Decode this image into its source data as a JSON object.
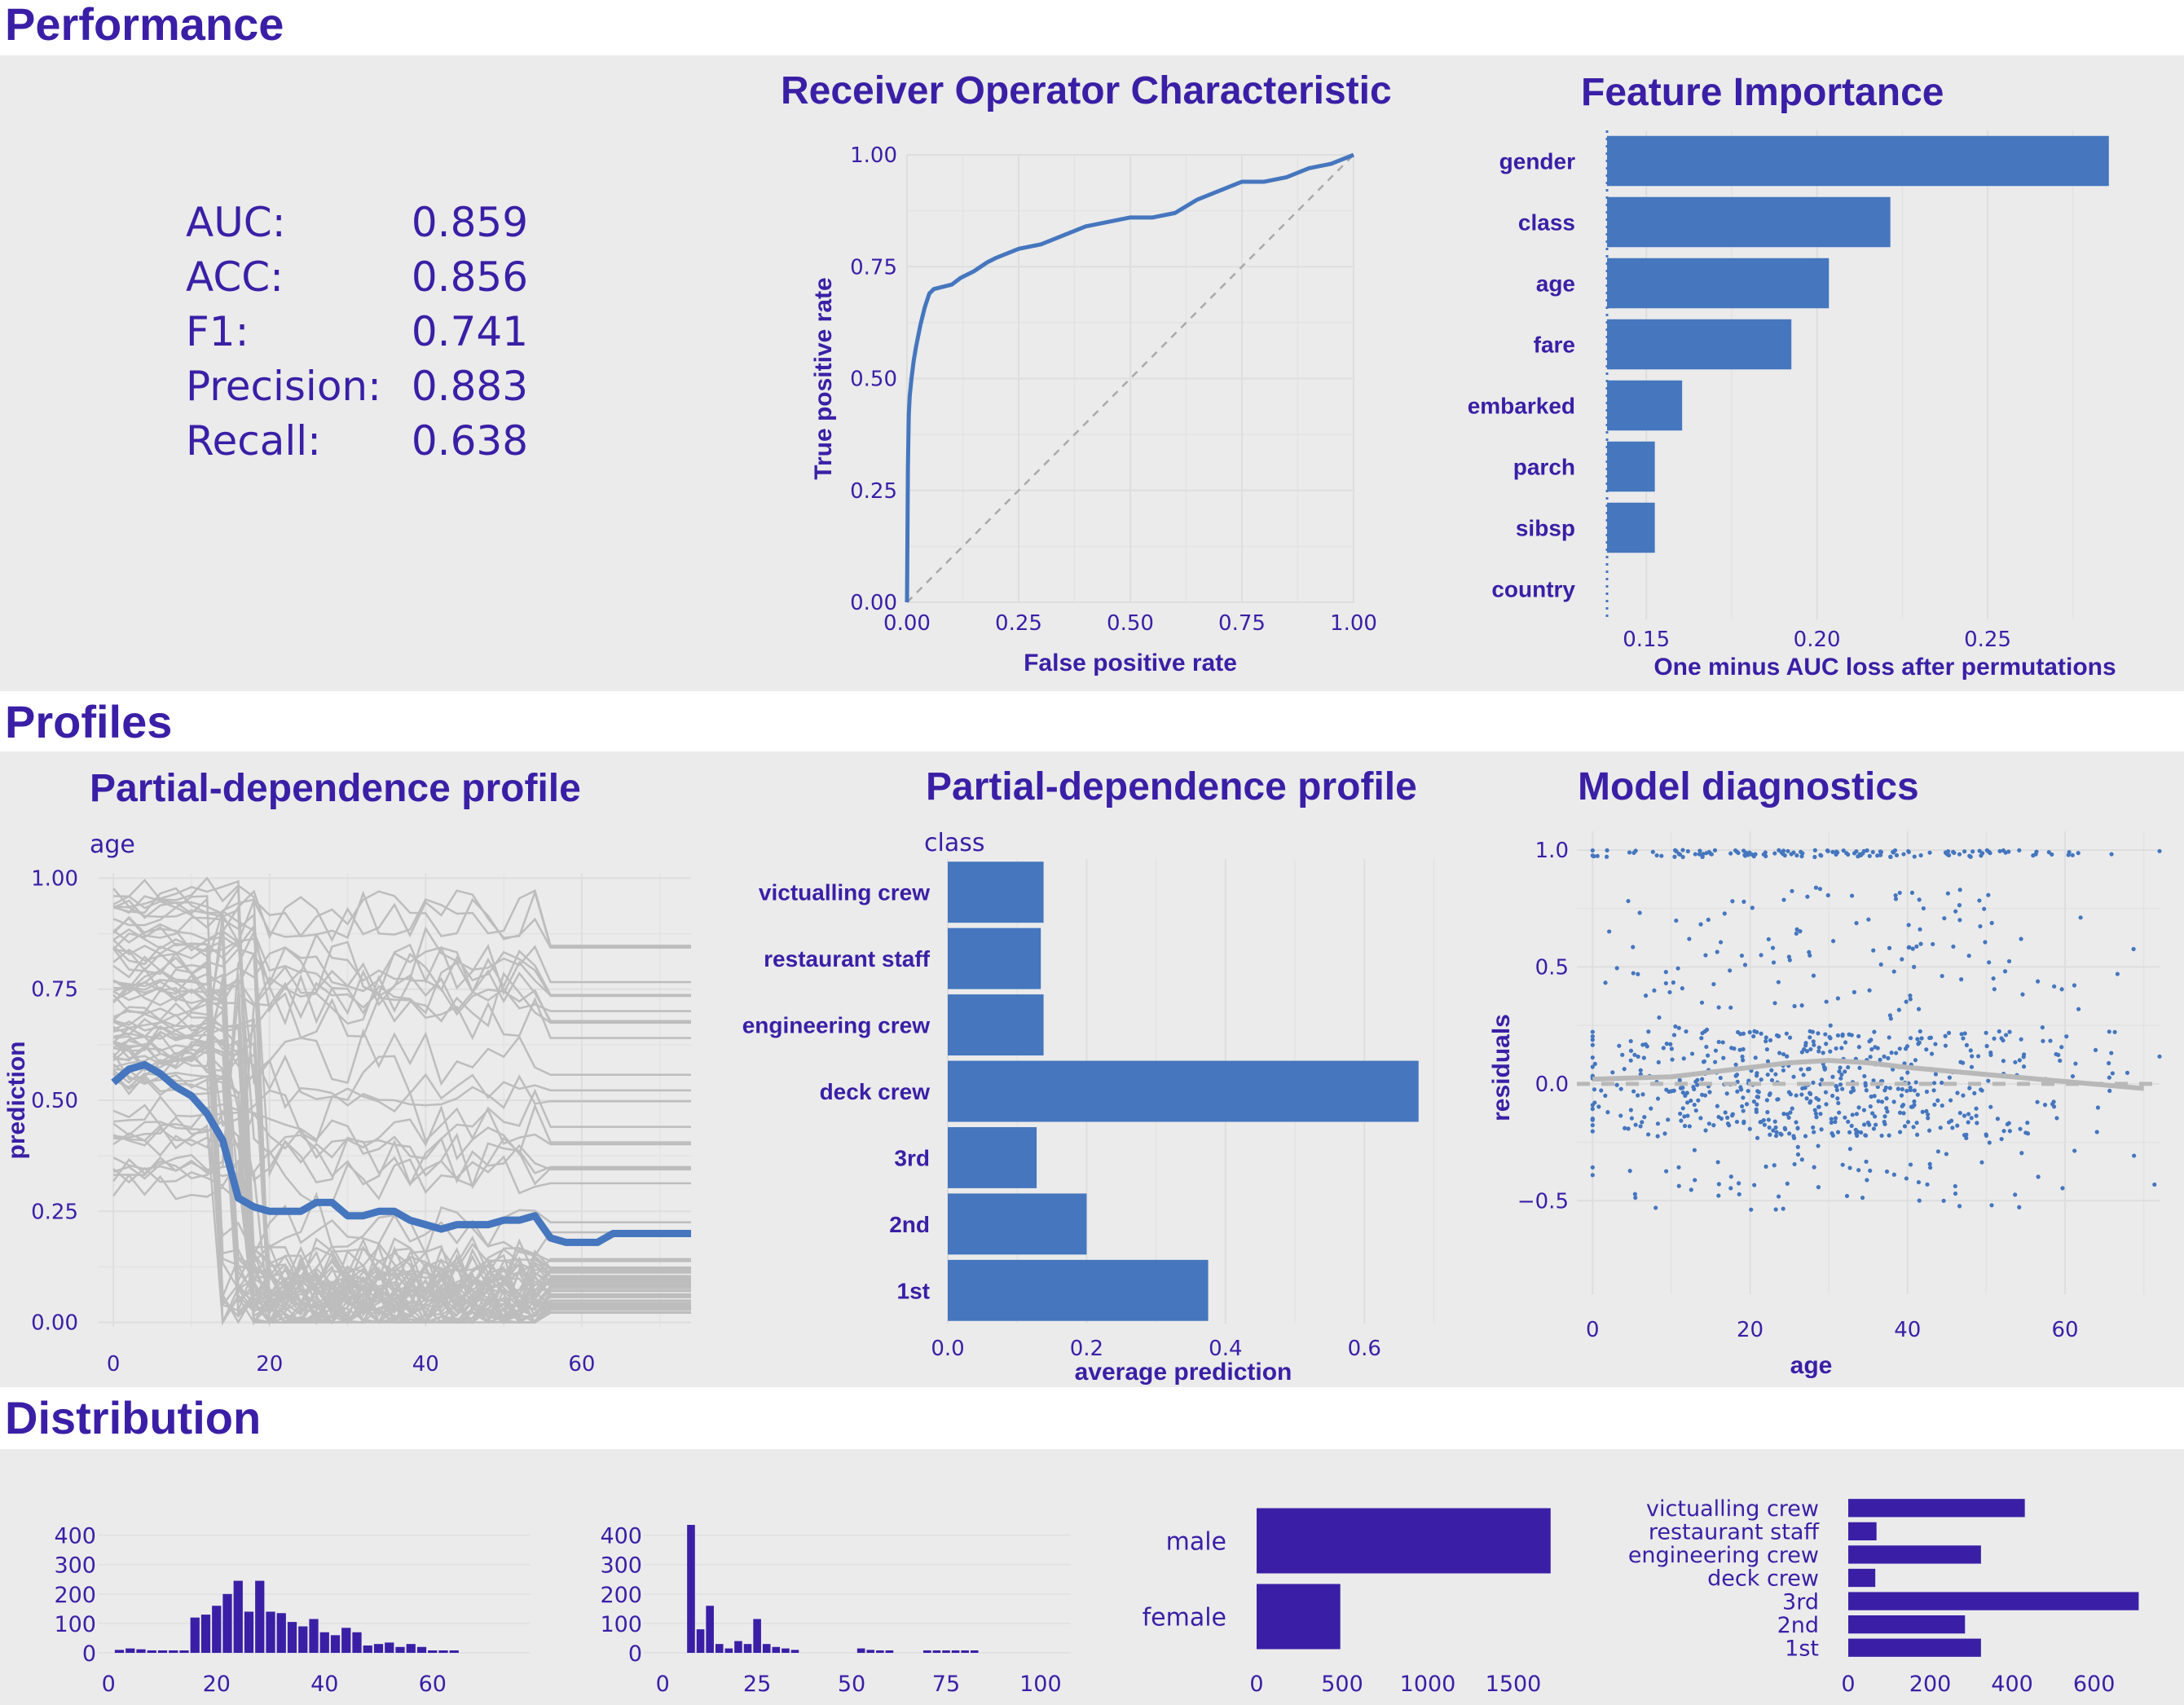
{
  "sections": {
    "performance": "Performance",
    "profiles": "Profiles",
    "distribution": "Distribution"
  },
  "colors": {
    "band": "#ebebeb",
    "title": "#3a1fa6",
    "bar_blue": "#4576be",
    "hist_purple": "#3a1fa6",
    "gray_lines": "#bdbdbd",
    "grid": "#dedede"
  },
  "metrics": [
    {
      "label": "AUC:",
      "value": "0.859"
    },
    {
      "label": "ACC:",
      "value": "0.856"
    },
    {
      "label": "F1:",
      "value": "0.741"
    },
    {
      "label": "Precision:",
      "value": "0.883"
    },
    {
      "label": "Recall:",
      "value": "0.638"
    }
  ],
  "chart_data": [
    {
      "id": "roc",
      "type": "line",
      "title": "Receiver Operator Characteristic",
      "xlabel": "False positive rate",
      "ylabel": "True positive rate",
      "xlim": [
        0,
        1
      ],
      "ylim": [
        0,
        1
      ],
      "xticks": [
        "0.00",
        "0.25",
        "0.50",
        "0.75",
        "1.00"
      ],
      "yticks": [
        "0.00",
        "0.25",
        "0.50",
        "0.75",
        "1.00"
      ],
      "diagonal": true,
      "grid": true,
      "x": [
        0,
        0.002,
        0.004,
        0.006,
        0.01,
        0.015,
        0.02,
        0.03,
        0.04,
        0.05,
        0.06,
        0.08,
        0.1,
        0.12,
        0.15,
        0.18,
        0.2,
        0.25,
        0.3,
        0.35,
        0.4,
        0.45,
        0.5,
        0.55,
        0.6,
        0.65,
        0.7,
        0.75,
        0.8,
        0.85,
        0.9,
        0.95,
        1.0
      ],
      "y": [
        0,
        0.3,
        0.42,
        0.46,
        0.5,
        0.54,
        0.57,
        0.62,
        0.66,
        0.69,
        0.7,
        0.705,
        0.71,
        0.725,
        0.74,
        0.76,
        0.77,
        0.79,
        0.8,
        0.82,
        0.84,
        0.85,
        0.86,
        0.86,
        0.87,
        0.9,
        0.92,
        0.94,
        0.94,
        0.95,
        0.97,
        0.98,
        1.0
      ]
    },
    {
      "id": "importance",
      "type": "bar",
      "title": "Feature Importance",
      "xlabel": "One minus AUC loss after permutations",
      "categories": [
        "gender",
        "class",
        "age",
        "fare",
        "embarked",
        "parch",
        "sibsp",
        "country"
      ],
      "values": [
        0.2855,
        0.2215,
        0.2035,
        0.1925,
        0.1605,
        0.1525,
        0.1525,
        0.1385
      ],
      "baseline": 0.1385,
      "xlim": [
        0.1385,
        0.292
      ],
      "xticks": [
        0.15,
        0.2,
        0.25
      ],
      "xtick_labels": [
        "0.15",
        "0.20",
        "0.25"
      ]
    },
    {
      "id": "pdp_age",
      "type": "line",
      "title": "Partial-dependence profile",
      "subtitle": "age",
      "ylabel": "prediction",
      "xlim": [
        -2,
        74
      ],
      "ylim": [
        -0.01,
        1.01
      ],
      "xticks": [
        "0",
        "20",
        "40",
        "60"
      ],
      "yticks": [
        "0.00",
        "0.25",
        "0.50",
        "0.75",
        "1.00"
      ],
      "x": [
        0,
        2,
        4,
        6,
        8,
        10,
        12,
        14,
        16,
        18,
        20,
        22,
        24,
        26,
        28,
        30,
        32,
        34,
        36,
        38,
        40,
        42,
        44,
        46,
        48,
        50,
        52,
        54,
        56,
        58,
        60,
        62,
        64,
        74
      ],
      "y": [
        0.54,
        0.57,
        0.58,
        0.56,
        0.53,
        0.51,
        0.47,
        0.41,
        0.28,
        0.26,
        0.25,
        0.25,
        0.25,
        0.27,
        0.27,
        0.24,
        0.24,
        0.25,
        0.25,
        0.23,
        0.22,
        0.21,
        0.22,
        0.22,
        0.22,
        0.23,
        0.23,
        0.24,
        0.19,
        0.18,
        0.18,
        0.18,
        0.2,
        0.2
      ]
    },
    {
      "id": "pdp_class",
      "type": "bar",
      "title": "Partial-dependence profile",
      "subtitle": "class",
      "xlabel": "average prediction",
      "categories": [
        "victualling crew",
        "restaurant staff",
        "engineering crew",
        "deck crew",
        "3rd",
        "2nd",
        "1st"
      ],
      "values": [
        0.138,
        0.134,
        0.138,
        0.678,
        0.128,
        0.2,
        0.375
      ],
      "xlim": [
        0,
        0.71
      ],
      "xticks": [
        0,
        0.2,
        0.4,
        0.6
      ],
      "xtick_labels": [
        "0.0",
        "0.2",
        "0.4",
        "0.6"
      ]
    },
    {
      "id": "diagnostics",
      "type": "scatter",
      "title": "Model diagnostics",
      "xlabel": "age",
      "ylabel": "residuals",
      "xlim": [
        -2,
        72
      ],
      "ylim": [
        -0.9,
        1.08
      ],
      "xticks": [
        "0",
        "20",
        "40",
        "60"
      ],
      "yticks": [
        "−0.5",
        "0.0",
        "0.5",
        "1.0"
      ],
      "smooth_x": [
        0,
        10,
        20,
        25,
        30,
        35,
        40,
        50,
        60,
        70
      ],
      "smooth_y": [
        0.02,
        0.03,
        0.07,
        0.09,
        0.1,
        0.09,
        0.07,
        0.04,
        0.01,
        -0.02
      ]
    },
    {
      "id": "hist_age",
      "type": "bar",
      "xlim": [
        -2,
        78
      ],
      "ylim": [
        0,
        460
      ],
      "xticks": [
        "0",
        "20",
        "40",
        "60"
      ],
      "yticks": [
        "0",
        "100",
        "200",
        "300",
        "400"
      ],
      "bin_width": 2,
      "x": [
        2,
        4,
        6,
        8,
        10,
        12,
        14,
        16,
        18,
        20,
        22,
        24,
        26,
        28,
        30,
        32,
        34,
        36,
        38,
        40,
        42,
        44,
        46,
        48,
        50,
        52,
        54,
        56,
        58,
        60,
        62,
        64
      ],
      "values": [
        10,
        15,
        12,
        8,
        8,
        5,
        8,
        120,
        130,
        160,
        200,
        245,
        140,
        245,
        140,
        135,
        105,
        90,
        115,
        70,
        60,
        85,
        70,
        25,
        30,
        35,
        20,
        30,
        20,
        8,
        5,
        3
      ]
    },
    {
      "id": "hist_fare",
      "type": "bar",
      "xlim": [
        -5,
        108
      ],
      "ylim": [
        0,
        460
      ],
      "xticks": [
        "0",
        "25",
        "50",
        "75",
        "100"
      ],
      "yticks": [
        "0",
        "100",
        "200",
        "300",
        "400"
      ],
      "bin_width": 2.5,
      "x": [
        7.5,
        10,
        12.5,
        15,
        17.5,
        20,
        22.5,
        25,
        27.5,
        30,
        32.5,
        35,
        52.5,
        55,
        57.5,
        60,
        70,
        72.5,
        75,
        77.5,
        80,
        82.5
      ],
      "values": [
        435,
        80,
        160,
        30,
        15,
        40,
        30,
        115,
        30,
        20,
        15,
        10,
        15,
        10,
        8,
        5,
        3,
        3,
        5,
        3,
        5,
        5
      ]
    },
    {
      "id": "bar_gender",
      "type": "bar",
      "categories": [
        "male",
        "female"
      ],
      "values": [
        1718,
        489
      ],
      "xlim": [
        0,
        1800
      ],
      "xticks": [
        "0",
        "500",
        "1000",
        "1500"
      ]
    },
    {
      "id": "bar_class",
      "type": "bar",
      "categories": [
        "victualling crew",
        "restaurant staff",
        "engineering crew",
        "deck crew",
        "3rd",
        "2nd",
        "1st"
      ],
      "values": [
        431,
        69,
        324,
        66,
        709,
        285,
        324
      ],
      "xlim": [
        0,
        740
      ],
      "xticks": [
        "0",
        "200",
        "400",
        "600"
      ]
    }
  ]
}
